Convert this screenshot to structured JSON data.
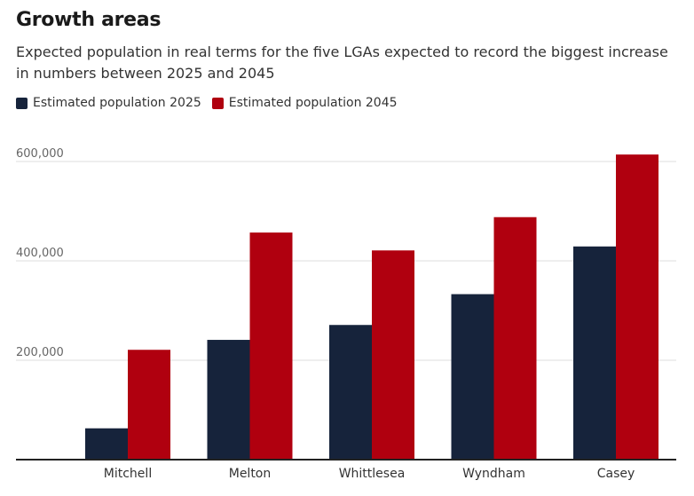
{
  "title": "Growth areas",
  "subtitle": "Expected population in real terms for the five LGAs expected to record the biggest increase in numbers between 2025 and 2045",
  "colors": {
    "series2025": "#16233b",
    "series2045": "#b0000f",
    "grid": "#dddddd",
    "axis": "#222222",
    "tick": "#666666"
  },
  "chart_data": {
    "type": "bar",
    "categories": [
      "Mitchell",
      "Melton",
      "Whittlesea",
      "Wyndham",
      "Casey"
    ],
    "series": [
      {
        "name": "Estimated population 2025",
        "values": [
          63000,
          241000,
          271000,
          333000,
          429000
        ]
      },
      {
        "name": "Estimated population 2045",
        "values": [
          221000,
          457000,
          421000,
          488000,
          614000
        ]
      }
    ],
    "yticks": [
      {
        "value": 200000,
        "label": "200,000"
      },
      {
        "value": 400000,
        "label": "400,000"
      },
      {
        "value": 600000,
        "label": "600,000"
      }
    ],
    "ylim": [
      0,
      630000
    ],
    "grid": true,
    "legend": "top-left"
  }
}
